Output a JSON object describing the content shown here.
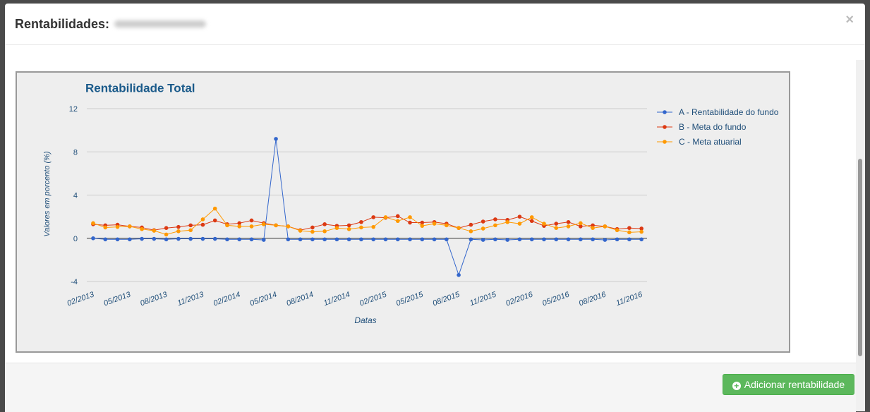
{
  "header": {
    "title": "Rentabilidades:",
    "close": "×"
  },
  "chart_data": {
    "type": "line",
    "title": "Rentabilidade Total",
    "xlabel": "Datas",
    "ylabel": "Valores em porcento (%)",
    "categories": [
      "02/2013",
      null,
      null,
      "05/2013",
      null,
      null,
      "08/2013",
      null,
      null,
      "11/2013",
      null,
      null,
      "02/2014",
      null,
      null,
      "05/2014",
      null,
      null,
      "08/2014",
      null,
      null,
      "11/2014",
      null,
      null,
      "02/2015",
      null,
      null,
      "05/2015",
      null,
      null,
      "08/2015",
      null,
      null,
      "11/2015",
      null,
      null,
      "02/2016",
      null,
      null,
      "05/2016",
      null,
      null,
      "08/2016",
      null,
      null,
      "11/2016"
    ],
    "series": [
      {
        "name": "A - Rentabilidade do fundo",
        "color": "#3366cc",
        "values": [
          0,
          -0.1,
          -0.1,
          -0.1,
          -0.05,
          -0.05,
          -0.1,
          -0.05,
          -0.05,
          -0.05,
          -0.05,
          -0.1,
          -0.1,
          -0.1,
          -0.15,
          9.2,
          -0.1,
          -0.1,
          -0.1,
          -0.1,
          -0.1,
          -0.1,
          -0.1,
          -0.1,
          -0.1,
          -0.1,
          -0.1,
          -0.1,
          -0.1,
          -0.1,
          -3.4,
          -0.1,
          -0.15,
          -0.1,
          -0.15,
          -0.1,
          -0.1,
          -0.1,
          -0.1,
          -0.1,
          -0.1,
          -0.1,
          -0.15,
          -0.1,
          -0.1,
          -0.1
        ]
      },
      {
        "name": "B - Meta do fundo",
        "color": "#dc3912",
        "values": [
          1.3,
          1.2,
          1.25,
          1.1,
          1.0,
          0.75,
          0.95,
          1.05,
          1.2,
          1.25,
          1.65,
          1.3,
          1.4,
          1.65,
          1.4,
          1.2,
          1.1,
          0.75,
          1.0,
          1.3,
          1.15,
          1.2,
          1.5,
          1.95,
          1.9,
          2.05,
          1.45,
          1.45,
          1.5,
          1.35,
          0.95,
          1.25,
          1.55,
          1.75,
          1.7,
          2.0,
          1.6,
          1.15,
          1.35,
          1.5,
          1.1,
          1.2,
          1.1,
          0.85,
          0.95,
          0.9
        ]
      },
      {
        "name": "C - Meta atuarial",
        "color": "#ff9900",
        "values": [
          1.4,
          1.0,
          1.05,
          1.1,
          0.85,
          0.7,
          0.35,
          0.65,
          0.75,
          1.75,
          2.75,
          1.2,
          1.1,
          1.1,
          1.3,
          1.2,
          1.1,
          0.7,
          0.6,
          0.65,
          0.95,
          0.85,
          1.0,
          1.05,
          1.95,
          1.6,
          1.95,
          1.15,
          1.35,
          1.2,
          0.95,
          0.65,
          0.9,
          1.2,
          1.5,
          1.35,
          1.95,
          1.35,
          0.95,
          1.1,
          1.4,
          0.95,
          1.1,
          0.75,
          0.55,
          0.6
        ]
      }
    ],
    "ylim": [
      -4,
      12
    ],
    "yticks": [
      -4,
      0,
      4,
      8,
      12
    ],
    "grid": true,
    "legend": "right"
  },
  "footer": {
    "button": "Adicionar rentabilidade"
  }
}
